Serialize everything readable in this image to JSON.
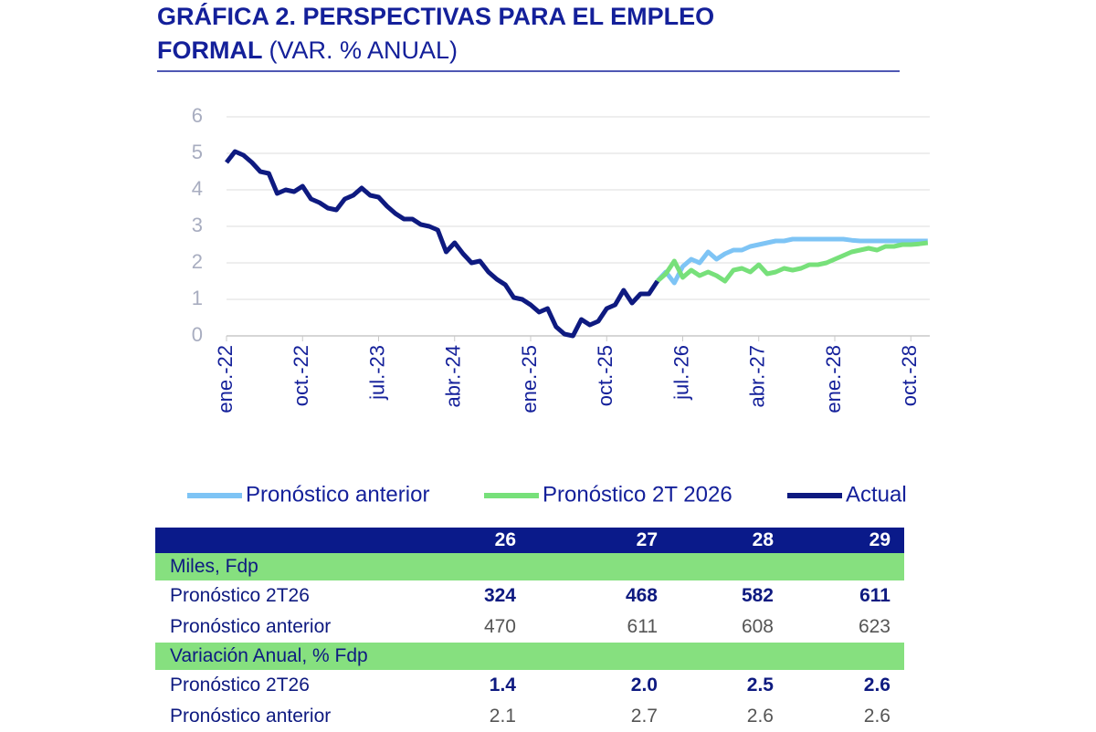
{
  "chart_data": {
    "type": "line",
    "title": "GRÁFICA 2. PERSPECTIVAS PARA EL EMPLEO FORMAL",
    "subtitle": "(VAR. % ANUAL)",
    "categories": [
      "ene.-22",
      null,
      null,
      null,
      null,
      null,
      null,
      null,
      null,
      "oct.-22",
      null,
      null,
      null,
      null,
      null,
      null,
      null,
      null,
      "jul.-23",
      null,
      null,
      null,
      null,
      null,
      null,
      null,
      null,
      "abr.-24",
      null,
      null,
      null,
      null,
      null,
      null,
      null,
      null,
      "ene.-25",
      null,
      null,
      null,
      null,
      null,
      null,
      null,
      null,
      "oct.-25",
      null,
      null,
      null,
      null,
      null,
      null,
      null,
      null,
      "jul.-26",
      null,
      null,
      null,
      null,
      null,
      null,
      null,
      null,
      "abr.-27",
      null,
      null,
      null,
      null,
      null,
      null,
      null,
      null,
      "ene.-28",
      null,
      null,
      null,
      null,
      null,
      null,
      null,
      null,
      "oct.-28",
      null,
      null
    ],
    "ylim": [
      0,
      6
    ],
    "yticks": [
      0,
      1,
      2,
      3,
      4,
      5,
      6
    ],
    "grid": true,
    "legend": "bottom",
    "series": [
      {
        "name": "Pronóstico anterior",
        "color": "#7ec4f5",
        "values": [
          null,
          null,
          null,
          null,
          null,
          null,
          null,
          null,
          null,
          null,
          null,
          null,
          null,
          null,
          null,
          null,
          null,
          null,
          null,
          null,
          null,
          null,
          null,
          null,
          null,
          null,
          null,
          null,
          null,
          null,
          null,
          null,
          null,
          null,
          null,
          null,
          null,
          null,
          null,
          null,
          null,
          null,
          null,
          null,
          null,
          null,
          null,
          null,
          null,
          null,
          null,
          1.5,
          1.75,
          1.45,
          1.9,
          2.1,
          2.0,
          2.3,
          2.1,
          2.25,
          2.35,
          2.35,
          2.45,
          2.5,
          2.55,
          2.6,
          2.6,
          2.65,
          2.65,
          2.65,
          2.65,
          2.65,
          2.65,
          2.65,
          2.62,
          2.6,
          2.6,
          2.6,
          2.6,
          2.6,
          2.6,
          2.6,
          2.6,
          2.6
        ]
      },
      {
        "name": "Pronóstico 2T 2026",
        "color": "#77e07a",
        "values": [
          null,
          null,
          null,
          null,
          null,
          null,
          null,
          null,
          null,
          null,
          null,
          null,
          null,
          null,
          null,
          null,
          null,
          null,
          null,
          null,
          null,
          null,
          null,
          null,
          null,
          null,
          null,
          null,
          null,
          null,
          null,
          null,
          null,
          null,
          null,
          null,
          null,
          null,
          null,
          null,
          null,
          null,
          null,
          null,
          null,
          null,
          null,
          null,
          null,
          null,
          null,
          1.5,
          1.7,
          2.05,
          1.6,
          1.8,
          1.65,
          1.75,
          1.65,
          1.5,
          1.8,
          1.85,
          1.75,
          1.95,
          1.7,
          1.75,
          1.85,
          1.8,
          1.85,
          1.95,
          1.95,
          2.0,
          2.1,
          2.2,
          2.3,
          2.35,
          2.4,
          2.35,
          2.45,
          2.45,
          2.5,
          2.5,
          2.52,
          2.55
        ]
      },
      {
        "name": "Actual",
        "color": "#0e1a80",
        "values": [
          4.75,
          5.05,
          4.95,
          4.75,
          4.5,
          4.45,
          3.9,
          4.0,
          3.95,
          4.1,
          3.75,
          3.65,
          3.5,
          3.45,
          3.75,
          3.85,
          4.05,
          3.85,
          3.8,
          3.55,
          3.35,
          3.2,
          3.2,
          3.05,
          3.0,
          2.9,
          2.3,
          2.55,
          2.25,
          2.0,
          2.05,
          1.75,
          1.55,
          1.4,
          1.05,
          1.0,
          0.85,
          0.65,
          0.75,
          0.25,
          0.05,
          0.0,
          0.45,
          0.3,
          0.4,
          0.75,
          0.85,
          1.25,
          0.9,
          1.15,
          1.15,
          1.5,
          null,
          null,
          null,
          null,
          null,
          null,
          null,
          null,
          null,
          null,
          null,
          null,
          null,
          null,
          null,
          null,
          null,
          null,
          null,
          null,
          null,
          null,
          null,
          null,
          null,
          null,
          null,
          null,
          null,
          null,
          null,
          null
        ]
      }
    ]
  },
  "table": {
    "columns": [
      "26",
      "27",
      "28",
      "29"
    ],
    "sections": [
      {
        "title": "Miles, Fdp",
        "rows": [
          {
            "label": "Pronóstico 2T26",
            "values": [
              "324",
              "468",
              "582",
              "611"
            ]
          },
          {
            "label": "Pronóstico anterior",
            "values": [
              "470",
              "611",
              "608",
              "623"
            ]
          }
        ]
      },
      {
        "title": "Variación Anual, % Fdp",
        "rows": [
          {
            "label": "Pronóstico 2T26",
            "values": [
              "1.4",
              "2.0",
              "2.5",
              "2.6"
            ]
          },
          {
            "label": "Pronóstico anterior",
            "values": [
              "2.1",
              "2.7",
              "2.6",
              "2.6"
            ]
          }
        ]
      }
    ]
  }
}
